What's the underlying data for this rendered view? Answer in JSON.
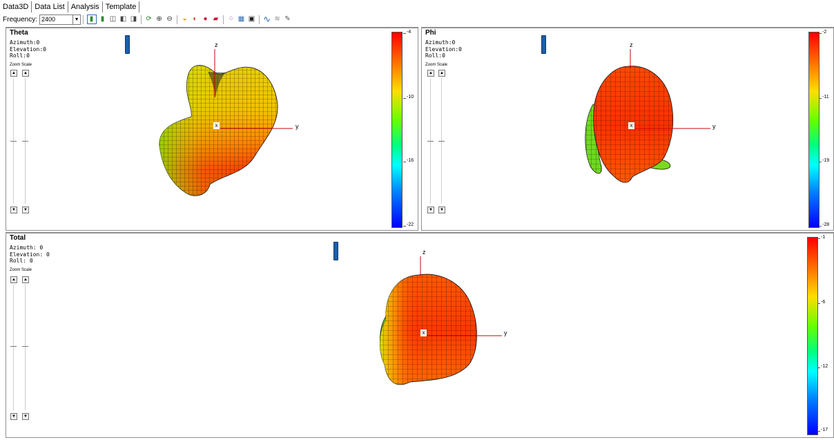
{
  "tabs": [
    "Data3D",
    "Data List",
    "Analysis",
    "Template"
  ],
  "toolbar": {
    "frequency_label": "Frequency:",
    "frequency_value": "2400",
    "icons": [
      "phone-green-icon",
      "phone-green-small-icon",
      "view-front-icon",
      "view-side-icon",
      "view-top-icon",
      "rotate-icon",
      "zoom-in-icon",
      "zoom-out-icon",
      "sphere-half-icon",
      "sphere-split-icon",
      "sphere-red-icon",
      "cut-icon",
      "scatter-icon",
      "chart-icon",
      "snapshot-icon",
      "sine-wave-icon",
      "multi-wave-icon",
      "edit-icon"
    ]
  },
  "panels": {
    "theta": {
      "title": "Theta",
      "azimuth": "Azimuth:0",
      "elevation": "Elevation:0",
      "roll": "Roll:0",
      "zoom_scale": "Zoom Scale",
      "colorbar": [
        "-4",
        "-10",
        "-16",
        "-22"
      ],
      "axis_z": "z",
      "axis_y": "y",
      "axis_x": "x"
    },
    "phi": {
      "title": "Phi",
      "azimuth": "Azimuth:0",
      "elevation": "Elevation:0",
      "roll": "Roll:0",
      "zoom_scale": "Zoom Scale",
      "colorbar": [
        "-2",
        "-11",
        "-19",
        "-28"
      ],
      "axis_z": "z",
      "axis_y": "y",
      "axis_x": "x"
    },
    "total": {
      "title": "Total",
      "azimuth": "Azimuth: 0",
      "elevation": "Elevation: 0",
      "roll": "Roll: 0",
      "zoom_scale": "Zoom Scale",
      "colorbar": [
        "-1",
        "-6",
        "-12",
        "-17"
      ],
      "axis_z": "z",
      "axis_y": "y",
      "axis_x": "x"
    }
  },
  "colors": {
    "colorbar_top": "#ff0000",
    "colorbar_bottom": "#0000ff",
    "axis_line": "#cc0000",
    "device_blue": "#1f5ea8"
  }
}
